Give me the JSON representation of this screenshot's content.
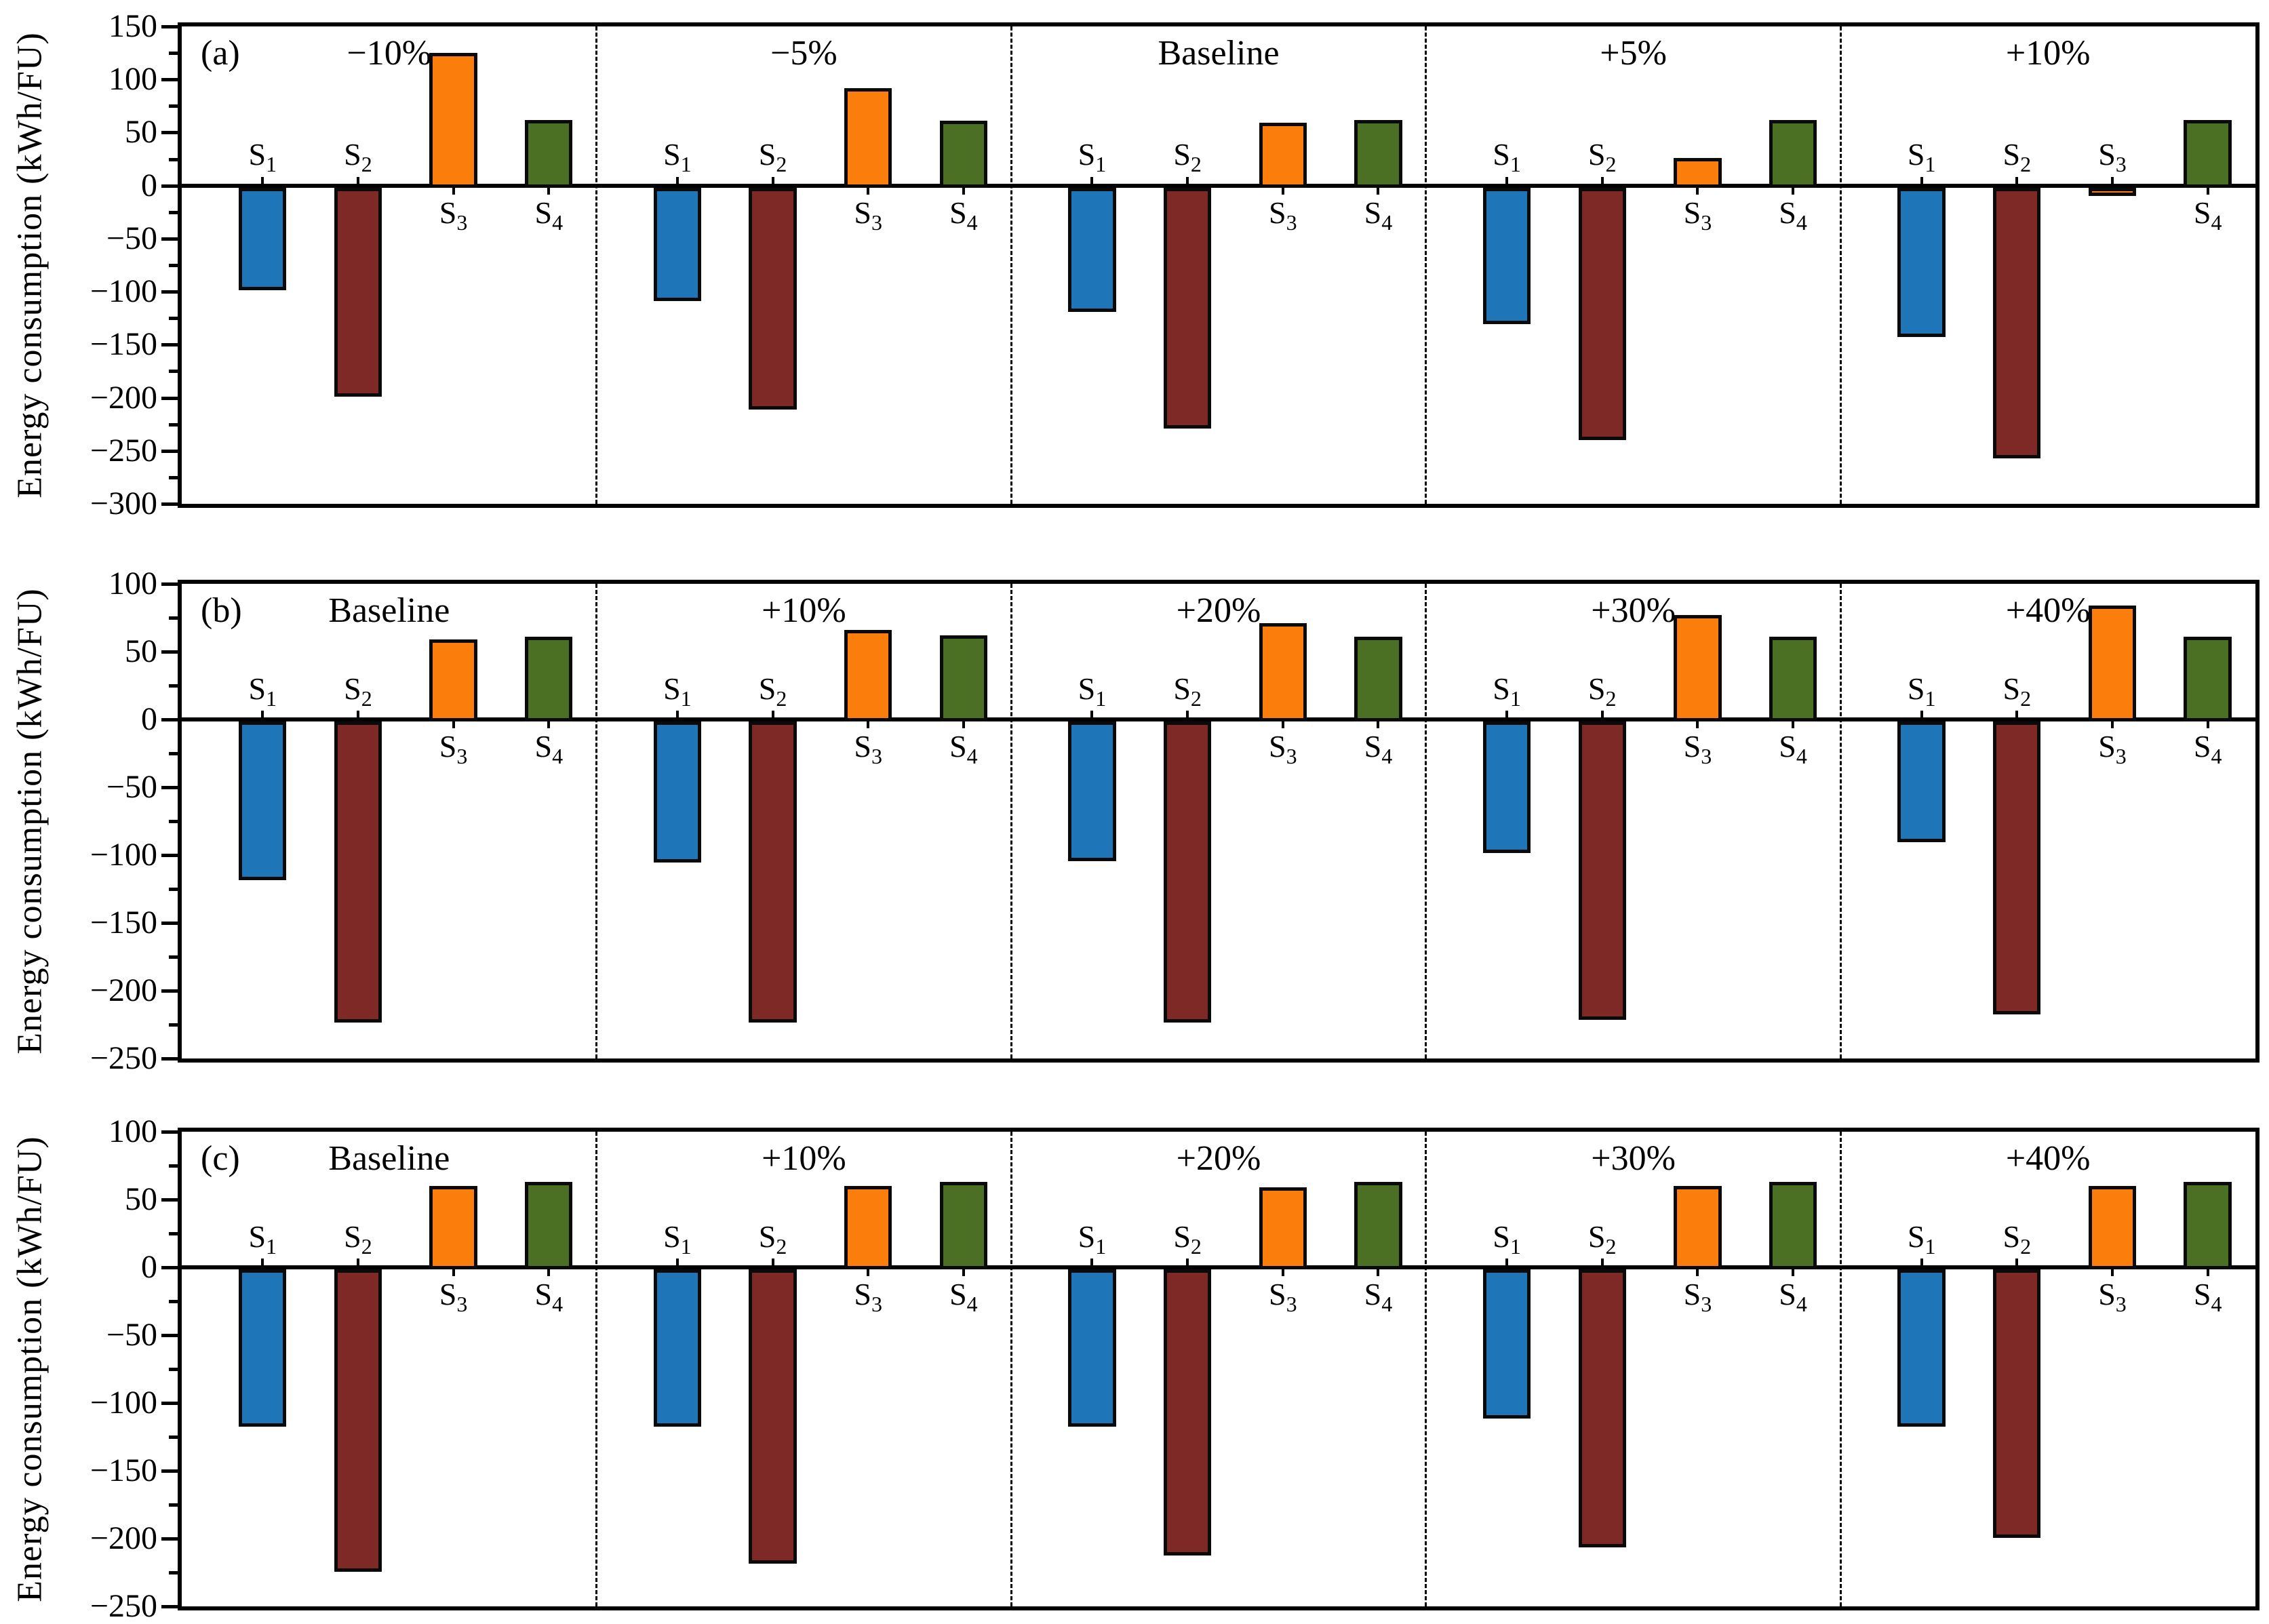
{
  "figure": {
    "background": "#ffffff",
    "axis_color": "#000000",
    "bar_outline_color": "#0a0a0a"
  },
  "chart_data": [
    {
      "panel_letter": "(a)",
      "type": "bar",
      "ylabel": "Energy consumption (kWh/FU)",
      "ylim": [
        -300,
        150
      ],
      "yticks": [
        150,
        100,
        50,
        0,
        -50,
        -100,
        -150,
        -200,
        -250,
        -300
      ],
      "ytick_minor_step": 25,
      "grid": false,
      "legend": "none",
      "categories": [
        "−10%",
        "−5%",
        "Baseline",
        "+5%",
        "+10%"
      ],
      "series": [
        {
          "name": "S1",
          "label_base": "S",
          "label_sub": "1",
          "color": "#1E76B8",
          "values": [
            -97,
            -107,
            -117,
            -129,
            -141
          ]
        },
        {
          "name": "S2",
          "label_base": "S",
          "label_sub": "2",
          "color": "#7F2926",
          "values": [
            -197,
            -209,
            -227,
            -238,
            -255
          ]
        },
        {
          "name": "S3",
          "label_base": "S",
          "label_sub": "3",
          "color": "#FB7D0B",
          "values": [
            125,
            92,
            59,
            26,
            -8
          ]
        },
        {
          "name": "S4",
          "label_base": "S",
          "label_sub": "4",
          "color": "#4C7023",
          "values": [
            62,
            61,
            62,
            62,
            62
          ]
        }
      ]
    },
    {
      "panel_letter": "(b)",
      "type": "bar",
      "ylabel": "Energy consumption (kWh/FU)",
      "ylim": [
        -250,
        100
      ],
      "yticks": [
        100,
        50,
        0,
        -50,
        -100,
        -150,
        -200,
        -250
      ],
      "ytick_minor_step": 25,
      "grid": false,
      "legend": "none",
      "categories": [
        "Baseline",
        "+10%",
        "+20%",
        "+30%",
        "+40%"
      ],
      "series": [
        {
          "name": "S1",
          "label_base": "S",
          "label_sub": "1",
          "color": "#1E76B8",
          "values": [
            -117,
            -104,
            -103,
            -97,
            -89
          ]
        },
        {
          "name": "S2",
          "label_base": "S",
          "label_sub": "2",
          "color": "#7F2926",
          "values": [
            -222,
            -222,
            -222,
            -220,
            -216
          ]
        },
        {
          "name": "S3",
          "label_base": "S",
          "label_sub": "3",
          "color": "#FB7D0B",
          "values": [
            59,
            66,
            71,
            77,
            84
          ]
        },
        {
          "name": "S4",
          "label_base": "S",
          "label_sub": "4",
          "color": "#4C7023",
          "values": [
            61,
            62,
            61,
            61,
            61
          ]
        }
      ]
    },
    {
      "panel_letter": "(c)",
      "type": "bar",
      "ylabel": "Energy consumption (kWh/FU)",
      "ylim": [
        -250,
        100
      ],
      "yticks": [
        100,
        50,
        0,
        -50,
        -100,
        -150,
        -200,
        -250
      ],
      "ytick_minor_step": 25,
      "grid": false,
      "legend": "none",
      "categories": [
        "Baseline",
        "+10%",
        "+20%",
        "+30%",
        "+40%"
      ],
      "series": [
        {
          "name": "S1",
          "label_base": "S",
          "label_sub": "1",
          "color": "#1E76B8",
          "values": [
            -116,
            -116,
            -116,
            -110,
            -116
          ]
        },
        {
          "name": "S2",
          "label_base": "S",
          "label_sub": "2",
          "color": "#7F2926",
          "values": [
            -223,
            -217,
            -211,
            -205,
            -198
          ]
        },
        {
          "name": "S3",
          "label_base": "S",
          "label_sub": "3",
          "color": "#FB7D0B",
          "values": [
            60,
            60,
            59,
            60,
            60
          ]
        },
        {
          "name": "S4",
          "label_base": "S",
          "label_sub": "4",
          "color": "#4C7023",
          "values": [
            63,
            63,
            63,
            63,
            63
          ]
        }
      ]
    }
  ]
}
